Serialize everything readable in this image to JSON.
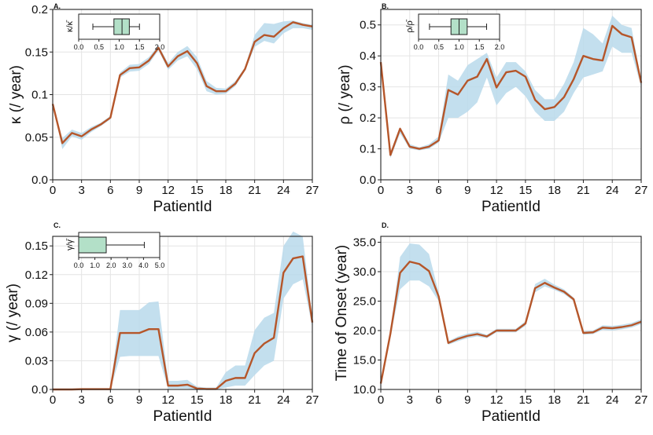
{
  "figure": {
    "colors": {
      "line": "#b5562a",
      "band": "#b9d9eb",
      "inset_box": "#b3e0c8"
    }
  },
  "chart_data": [
    {
      "type": "line",
      "panel_letter": "A.",
      "xlabel": "PatientId",
      "ylabel": "κ (/ year)",
      "xlim": [
        0,
        27
      ],
      "ylim": [
        0,
        0.2
      ],
      "xticks": [
        0,
        3,
        6,
        9,
        12,
        15,
        18,
        21,
        24,
        27
      ],
      "yticks": [
        0,
        0.05,
        0.1,
        0.15,
        0.2
      ],
      "ytick_labels": [
        "0.0",
        "0.05",
        "0.1",
        "0.15",
        "0.2"
      ],
      "x": [
        0,
        1,
        2,
        3,
        4,
        5,
        6,
        7,
        8,
        9,
        10,
        11,
        12,
        13,
        14,
        15,
        16,
        17,
        18,
        19,
        20,
        21,
        22,
        23,
        24,
        25,
        26,
        27
      ],
      "series": [
        {
          "name": "mean",
          "values": [
            0.089,
            0.043,
            0.055,
            0.051,
            0.059,
            0.065,
            0.073,
            0.123,
            0.131,
            0.132,
            0.14,
            0.155,
            0.133,
            0.145,
            0.151,
            0.137,
            0.11,
            0.104,
            0.104,
            0.113,
            0.13,
            0.162,
            0.17,
            0.168,
            0.178,
            0.185,
            0.182,
            0.18
          ]
        }
      ],
      "band_low": [
        0.089,
        0.036,
        0.051,
        0.047,
        0.056,
        0.063,
        0.071,
        0.12,
        0.127,
        0.128,
        0.136,
        0.152,
        0.129,
        0.14,
        0.145,
        0.13,
        0.104,
        0.1,
        0.101,
        0.11,
        0.128,
        0.156,
        0.163,
        0.16,
        0.172,
        0.178,
        0.178,
        0.176
      ],
      "band_high": [
        0.089,
        0.049,
        0.059,
        0.055,
        0.062,
        0.067,
        0.075,
        0.126,
        0.135,
        0.136,
        0.144,
        0.158,
        0.137,
        0.15,
        0.157,
        0.144,
        0.116,
        0.108,
        0.107,
        0.116,
        0.132,
        0.17,
        0.184,
        0.183,
        0.186,
        0.187,
        0.184,
        0.182
      ],
      "inset": {
        "type": "box",
        "label": "κ/κ̄",
        "xlim": [
          0,
          2
        ],
        "xticks": [
          0,
          0.5,
          1.0,
          1.5,
          2.0
        ],
        "xtick_labels": [
          "0.0",
          "0.5",
          "1.0",
          "1.5",
          "2.0"
        ],
        "whisker_low": 0.35,
        "q1": 0.87,
        "median": 1.07,
        "q3": 1.25,
        "whisker_high": 1.5
      }
    },
    {
      "type": "line",
      "panel_letter": "B.",
      "xlabel": "PatientId",
      "ylabel": "ρ (/ year)",
      "xlim": [
        0,
        27
      ],
      "ylim": [
        0,
        0.55
      ],
      "xticks": [
        0,
        3,
        6,
        9,
        12,
        15,
        18,
        21,
        24,
        27
      ],
      "yticks": [
        0,
        0.1,
        0.2,
        0.3,
        0.4,
        0.5
      ],
      "ytick_labels": [
        "0.0",
        "0.1",
        "0.2",
        "0.3",
        "0.4",
        "0.5"
      ],
      "x": [
        0,
        1,
        2,
        3,
        4,
        5,
        6,
        7,
        8,
        9,
        10,
        11,
        12,
        13,
        14,
        15,
        16,
        17,
        18,
        19,
        20,
        21,
        22,
        23,
        24,
        25,
        26,
        27
      ],
      "series": [
        {
          "name": "mean",
          "values": [
            0.38,
            0.08,
            0.165,
            0.107,
            0.1,
            0.107,
            0.127,
            0.29,
            0.275,
            0.32,
            0.333,
            0.39,
            0.298,
            0.347,
            0.352,
            0.333,
            0.258,
            0.228,
            0.235,
            0.267,
            0.325,
            0.4,
            0.39,
            0.385,
            0.497,
            0.47,
            0.46,
            0.313
          ]
        }
      ],
      "band_low": [
        0.38,
        0.07,
        0.15,
        0.1,
        0.095,
        0.1,
        0.12,
        0.2,
        0.2,
        0.22,
        0.25,
        0.33,
        0.24,
        0.28,
        0.3,
        0.27,
        0.22,
        0.19,
        0.19,
        0.22,
        0.28,
        0.33,
        0.34,
        0.35,
        0.43,
        0.41,
        0.41,
        0.3
      ],
      "band_high": [
        0.38,
        0.09,
        0.17,
        0.115,
        0.105,
        0.115,
        0.14,
        0.34,
        0.32,
        0.37,
        0.39,
        0.41,
        0.33,
        0.38,
        0.38,
        0.35,
        0.29,
        0.26,
        0.26,
        0.31,
        0.38,
        0.49,
        0.47,
        0.44,
        0.53,
        0.5,
        0.49,
        0.32
      ],
      "inset": {
        "type": "box",
        "label": "ρ/ρ̄",
        "xlim": [
          0,
          2
        ],
        "xticks": [
          0,
          0.5,
          1.0,
          1.5,
          2.0
        ],
        "xtick_labels": [
          "0.0",
          "0.5",
          "1.0",
          "1.5",
          "2.0"
        ],
        "whisker_low": 0.27,
        "q1": 0.8,
        "median": 1.0,
        "q3": 1.2,
        "whisker_high": 1.68
      }
    },
    {
      "type": "line",
      "panel_letter": "C.",
      "xlabel": "PatientId",
      "ylabel": "γ (/ year)",
      "xlim": [
        0,
        27
      ],
      "ylim": [
        0,
        0.16
      ],
      "xticks": [
        0,
        3,
        6,
        9,
        12,
        15,
        18,
        21,
        24,
        27
      ],
      "yticks": [
        0,
        0.03,
        0.06,
        0.09,
        0.12,
        0.15
      ],
      "ytick_labels": [
        "0.0",
        "0.03",
        "0.06",
        "0.09",
        "0.12",
        "0.15"
      ],
      "x": [
        0,
        1,
        2,
        3,
        4,
        5,
        6,
        7,
        8,
        9,
        10,
        11,
        12,
        13,
        14,
        15,
        16,
        17,
        18,
        19,
        20,
        21,
        22,
        23,
        24,
        25,
        26,
        27
      ],
      "series": [
        {
          "name": "mean",
          "values": [
            0.0,
            0.0,
            0.0,
            0.0003,
            0.0003,
            0.0003,
            0.0003,
            0.059,
            0.059,
            0.059,
            0.063,
            0.063,
            0.004,
            0.004,
            0.005,
            0.001,
            0.0005,
            0.0005,
            0.009,
            0.012,
            0.012,
            0.038,
            0.048,
            0.054,
            0.122,
            0.137,
            0.139,
            0.07
          ]
        }
      ],
      "band_low": [
        0.0,
        0.0,
        0.0,
        0.0,
        0.0,
        0.0,
        0.0,
        0.034,
        0.035,
        0.035,
        0.035,
        0.035,
        0.001,
        0.001,
        0.001,
        0.0,
        0.0,
        0.0,
        0.002,
        0.004,
        0.004,
        0.015,
        0.025,
        0.03,
        0.095,
        0.11,
        0.115,
        0.065
      ],
      "band_high": [
        0.0,
        0.0,
        0.0,
        0.001,
        0.001,
        0.001,
        0.001,
        0.083,
        0.083,
        0.083,
        0.091,
        0.092,
        0.009,
        0.009,
        0.01,
        0.003,
        0.002,
        0.002,
        0.018,
        0.025,
        0.025,
        0.062,
        0.075,
        0.08,
        0.15,
        0.165,
        0.16,
        0.075
      ],
      "inset": {
        "type": "box",
        "label": "γ/γ̄",
        "xlim": [
          0,
          5
        ],
        "xticks": [
          0,
          1,
          2,
          3,
          4,
          5
        ],
        "xtick_labels": [
          "0.0",
          "1.0",
          "2.0",
          "3.0",
          "4.0",
          "5.0"
        ],
        "whisker_low": 0.0,
        "q1": 0.0,
        "median": 0.0,
        "q3": 1.7,
        "whisker_high": 4.05
      }
    },
    {
      "type": "line",
      "panel_letter": "D.",
      "xlabel": "PatientId",
      "ylabel": "Time of Onset (year)",
      "xlim": [
        0,
        27
      ],
      "ylim": [
        10,
        36
      ],
      "xticks": [
        0,
        3,
        6,
        9,
        12,
        15,
        18,
        21,
        24,
        27
      ],
      "yticks": [
        10,
        15,
        20,
        25,
        30,
        35
      ],
      "ytick_labels": [
        "10.0",
        "15.0",
        "20.0",
        "25.0",
        "30.0",
        "35.0"
      ],
      "x": [
        0,
        1,
        2,
        3,
        4,
        5,
        6,
        7,
        8,
        9,
        10,
        11,
        12,
        13,
        14,
        15,
        16,
        17,
        18,
        19,
        20,
        21,
        22,
        23,
        24,
        25,
        26,
        27
      ],
      "series": [
        {
          "name": "mean",
          "values": [
            11.0,
            19.5,
            29.8,
            31.7,
            31.3,
            30.1,
            25.8,
            17.9,
            18.6,
            19.1,
            19.4,
            19.0,
            20.0,
            20.0,
            20.0,
            21.2,
            27.2,
            28.1,
            27.3,
            26.6,
            25.3,
            19.6,
            19.7,
            20.5,
            20.4,
            20.6,
            20.9,
            21.5
          ]
        }
      ],
      "band_low": [
        11.0,
        19.0,
        27.0,
        28.5,
        28.5,
        27.5,
        25.0,
        17.6,
        18.2,
        18.7,
        19.0,
        18.7,
        19.7,
        19.7,
        19.7,
        20.8,
        26.5,
        27.5,
        26.9,
        26.2,
        25.0,
        19.3,
        19.4,
        20.1,
        20.0,
        20.2,
        20.5,
        21.1
      ],
      "band_high": [
        11.0,
        19.8,
        32.5,
        34.8,
        34.6,
        33.0,
        26.5,
        18.2,
        19.0,
        19.5,
        19.8,
        19.3,
        20.3,
        20.3,
        20.3,
        21.6,
        27.9,
        28.8,
        27.8,
        27.0,
        25.6,
        19.9,
        20.0,
        20.9,
        20.8,
        21.0,
        21.3,
        21.9
      ]
    }
  ]
}
